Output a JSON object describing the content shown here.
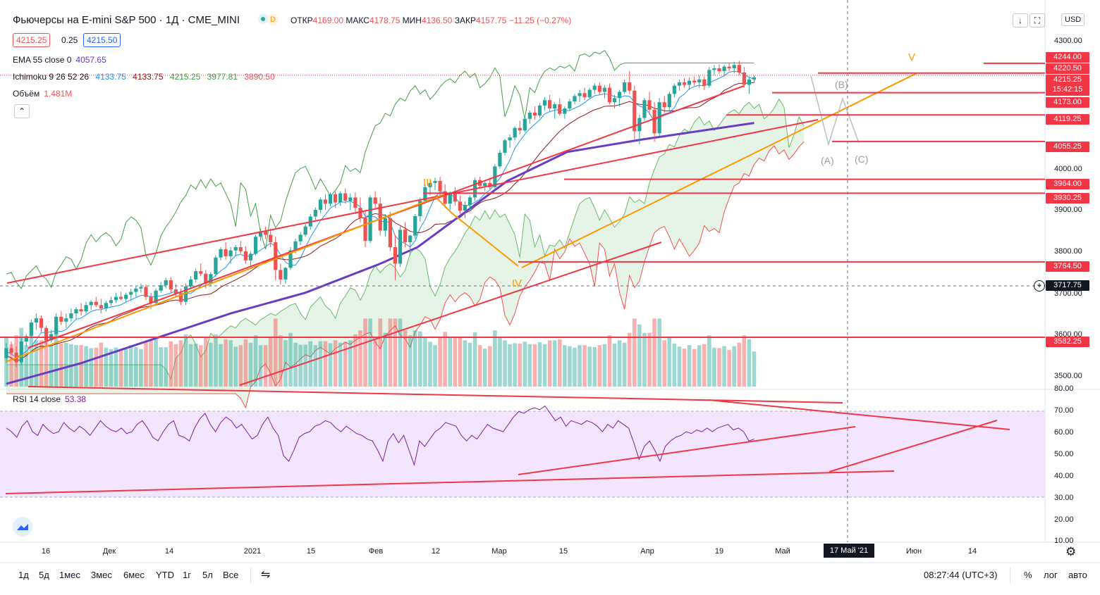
{
  "header": {
    "title": "Фьючерсы на E-mini S&P 500 · 1Д · CME_MINI",
    "badge": "D",
    "open_label": "ОТКР",
    "open": "4169.00",
    "high_label": "МАКС",
    "high": "4178.75",
    "low_label": "МИН",
    "low": "4136.50",
    "close_label": "ЗАКР",
    "close": "4157.75",
    "change": "−11.25 (−0.27%)",
    "bid": "4215.25",
    "spread": "0.25",
    "ask": "4215.50",
    "currency": "USD"
  },
  "indicators": {
    "ema_label": "EMA 55 close 0",
    "ema_value": "4057.65",
    "ichimoku_label": "Ichimoku 9 26 52 26",
    "ichimoku_values": [
      "4133.75",
      "4133.75",
      "4215.25",
      "3977.81",
      "3890.50"
    ],
    "volume_label": "Объём",
    "volume_value": "1.481M",
    "rsi_label": "RSI 14 close",
    "rsi_value": "53.38"
  },
  "waves": {
    "w3": "III",
    "w4": "IV",
    "w5": "V",
    "a": "(A)",
    "b": "(B)",
    "c": "(C)"
  },
  "price_levels": [
    {
      "label": "4244.00",
      "value": 4244
    },
    {
      "label": "4220.50",
      "value": 4220.5
    },
    {
      "label": "4173.00",
      "value": 4173
    },
    {
      "label": "4119.25",
      "value": 4119.25
    },
    {
      "label": "4055.25",
      "value": 4055.25
    },
    {
      "label": "3964.00",
      "value": 3964
    },
    {
      "label": "3930.25",
      "value": 3930.25
    },
    {
      "label": "3764.50",
      "value": 3764.5
    },
    {
      "label": "3582.25",
      "value": 3582.25
    }
  ],
  "current_price": {
    "label": "4215.25",
    "countdown": "15:42:15"
  },
  "crosshair": {
    "label": "3717.75",
    "date": "17 Май '21"
  },
  "axis": {
    "price_ticks": [
      "4300.00",
      "4000.00",
      "3900.00",
      "3800.00",
      "3700.00",
      "3600.00",
      "3500.00"
    ],
    "rsi_ticks": [
      "80.00",
      "70.00",
      "60.00",
      "50.00",
      "40.00",
      "30.00",
      "20.00",
      "10.00"
    ],
    "x_ticks": [
      "16",
      "Дек",
      "14",
      "2021",
      "15",
      "Фев",
      "12",
      "Мар",
      "15",
      "Апр",
      "19",
      "Май",
      "Июн",
      "14"
    ]
  },
  "bottom_bar": {
    "ranges": [
      "1д",
      "5д",
      "1мес",
      "3мес",
      "6мес",
      "YTD",
      "1г",
      "5л",
      "Все"
    ],
    "time": "08:27:44 (UTC+3)",
    "pct": "%",
    "log": "лог",
    "auto": "авто"
  },
  "colors": {
    "up": "#26a69a",
    "down": "#ef5350",
    "level": "#f23645",
    "ema": "#6a3cc4",
    "tenkan": "#2196f3",
    "kijun": "#8b1a1a",
    "chikou": "#43a047",
    "rsi": "#7b1fa2",
    "rsi_band": "#f3e5fd",
    "cloud": "#c8e6c9",
    "orange": "#ff9800"
  },
  "chart_data": {
    "type": "candlestick",
    "title": "Фьючерсы на E-mini S&P 500 · 1Д · CME_MINI",
    "ylim": [
      3460,
      4320
    ],
    "rsi_ylim": [
      0,
      83
    ],
    "candles_x_start": 9,
    "candle_spacing": 7.07,
    "ohlc": [
      [
        3532,
        3568,
        3520,
        3556
      ],
      [
        3556,
        3572,
        3540,
        3545
      ],
      [
        3545,
        3560,
        3510,
        3522
      ],
      [
        3522,
        3580,
        3515,
        3572
      ],
      [
        3572,
        3590,
        3560,
        3585
      ],
      [
        3585,
        3625,
        3580,
        3618
      ],
      [
        3618,
        3640,
        3600,
        3628
      ],
      [
        3628,
        3635,
        3595,
        3605
      ],
      [
        3605,
        3610,
        3560,
        3575
      ],
      [
        3575,
        3600,
        3570,
        3590
      ],
      [
        3590,
        3640,
        3585,
        3632
      ],
      [
        3632,
        3645,
        3612,
        3620
      ],
      [
        3620,
        3640,
        3605,
        3628
      ],
      [
        3628,
        3652,
        3620,
        3640
      ],
      [
        3640,
        3655,
        3625,
        3650
      ],
      [
        3650,
        3665,
        3635,
        3645
      ],
      [
        3645,
        3668,
        3640,
        3660
      ],
      [
        3660,
        3672,
        3648,
        3668
      ],
      [
        3668,
        3680,
        3655,
        3660
      ],
      [
        3660,
        3675,
        3640,
        3652
      ],
      [
        3652,
        3670,
        3645,
        3665
      ],
      [
        3665,
        3680,
        3658,
        3672
      ],
      [
        3672,
        3690,
        3665,
        3680
      ],
      [
        3680,
        3692,
        3672,
        3675
      ],
      [
        3675,
        3690,
        3668,
        3685
      ],
      [
        3685,
        3700,
        3670,
        3692
      ],
      [
        3692,
        3706,
        3680,
        3700
      ],
      [
        3700,
        3712,
        3690,
        3704
      ],
      [
        3704,
        3710,
        3672,
        3680
      ],
      [
        3680,
        3690,
        3650,
        3665
      ],
      [
        3665,
        3700,
        3658,
        3695
      ],
      [
        3695,
        3716,
        3690,
        3708
      ],
      [
        3708,
        3726,
        3700,
        3720
      ],
      [
        3720,
        3728,
        3690,
        3698
      ],
      [
        3698,
        3712,
        3680,
        3688
      ],
      [
        3688,
        3700,
        3660,
        3668
      ],
      [
        3668,
        3712,
        3660,
        3705
      ],
      [
        3705,
        3730,
        3698,
        3722
      ],
      [
        3722,
        3748,
        3715,
        3742
      ],
      [
        3742,
        3760,
        3730,
        3736
      ],
      [
        3736,
        3745,
        3700,
        3712
      ],
      [
        3712,
        3740,
        3705,
        3735
      ],
      [
        3735,
        3780,
        3728,
        3775
      ],
      [
        3775,
        3800,
        3768,
        3795
      ],
      [
        3795,
        3812,
        3770,
        3778
      ],
      [
        3778,
        3800,
        3760,
        3792
      ],
      [
        3792,
        3805,
        3778,
        3800
      ],
      [
        3800,
        3815,
        3785,
        3790
      ],
      [
        3790,
        3802,
        3760,
        3768
      ],
      [
        3768,
        3790,
        3755,
        3784
      ],
      [
        3784,
        3830,
        3780,
        3825
      ],
      [
        3825,
        3845,
        3815,
        3838
      ],
      [
        3838,
        3850,
        3820,
        3830
      ],
      [
        3830,
        3845,
        3800,
        3812
      ],
      [
        3812,
        3825,
        3720,
        3745
      ],
      [
        3745,
        3760,
        3710,
        3722
      ],
      [
        3722,
        3752,
        3712,
        3750
      ],
      [
        3750,
        3800,
        3745,
        3792
      ],
      [
        3792,
        3820,
        3785,
        3814
      ],
      [
        3814,
        3836,
        3805,
        3830
      ],
      [
        3830,
        3856,
        3825,
        3850
      ],
      [
        3850,
        3880,
        3842,
        3874
      ],
      [
        3874,
        3896,
        3866,
        3890
      ],
      [
        3890,
        3920,
        3882,
        3915
      ],
      [
        3915,
        3928,
        3890,
        3905
      ],
      [
        3905,
        3932,
        3898,
        3928
      ],
      [
        3928,
        3935,
        3895,
        3908
      ],
      [
        3908,
        3935,
        3900,
        3930
      ],
      [
        3930,
        3942,
        3905,
        3912
      ],
      [
        3912,
        3930,
        3890,
        3920
      ],
      [
        3920,
        3932,
        3880,
        3895
      ],
      [
        3895,
        3920,
        3860,
        3870
      ],
      [
        3870,
        3890,
        3800,
        3815
      ],
      [
        3815,
        3925,
        3810,
        3920
      ],
      [
        3920,
        3935,
        3895,
        3905
      ],
      [
        3905,
        3920,
        3828,
        3840
      ],
      [
        3840,
        3880,
        3825,
        3870
      ],
      [
        3870,
        3885,
        3790,
        3800
      ],
      [
        3800,
        3830,
        3720,
        3760
      ],
      [
        3760,
        3850,
        3752,
        3842
      ],
      [
        3842,
        3860,
        3800,
        3812
      ],
      [
        3812,
        3830,
        3780,
        3828
      ],
      [
        3828,
        3880,
        3820,
        3875
      ],
      [
        3875,
        3920,
        3862,
        3912
      ],
      [
        3912,
        3952,
        3905,
        3945
      ],
      [
        3945,
        3962,
        3925,
        3955
      ],
      [
        3955,
        3968,
        3938,
        3960
      ],
      [
        3960,
        3970,
        3925,
        3935
      ],
      [
        3935,
        3952,
        3895,
        3905
      ],
      [
        3905,
        3935,
        3890,
        3930
      ],
      [
        3930,
        3945,
        3900,
        3910
      ],
      [
        3910,
        3925,
        3880,
        3888
      ],
      [
        3888,
        3910,
        3870,
        3902
      ],
      [
        3902,
        3925,
        3890,
        3920
      ],
      [
        3920,
        3968,
        3912,
        3962
      ],
      [
        3962,
        3970,
        3940,
        3948
      ],
      [
        3948,
        3958,
        3935,
        3955
      ],
      [
        3955,
        3968,
        3940,
        3945
      ],
      [
        3945,
        4000,
        3940,
        3995
      ],
      [
        3995,
        4035,
        3990,
        4028
      ],
      [
        4028,
        4062,
        4022,
        4058
      ],
      [
        4058,
        4072,
        4040,
        4065
      ],
      [
        4065,
        4092,
        4058,
        4088
      ],
      [
        4088,
        4105,
        4072,
        4082
      ],
      [
        4082,
        4115,
        4078,
        4110
      ],
      [
        4110,
        4130,
        4098,
        4125
      ],
      [
        4125,
        4140,
        4108,
        4118
      ],
      [
        4118,
        4148,
        4112,
        4142
      ],
      [
        4142,
        4162,
        4130,
        4155
      ],
      [
        4155,
        4168,
        4128,
        4135
      ],
      [
        4135,
        4150,
        4110,
        4145
      ],
      [
        4145,
        4160,
        4118,
        4122
      ],
      [
        4122,
        4140,
        4110,
        4135
      ],
      [
        4135,
        4158,
        4130,
        4152
      ],
      [
        4152,
        4170,
        4145,
        4165
      ],
      [
        4165,
        4180,
        4150,
        4172
      ],
      [
        4172,
        4185,
        4155,
        4162
      ],
      [
        4162,
        4185,
        4158,
        4180
      ],
      [
        4180,
        4196,
        4170,
        4190
      ],
      [
        4190,
        4198,
        4168,
        4175
      ],
      [
        4175,
        4192,
        4160,
        4185
      ],
      [
        4185,
        4195,
        4145,
        4150
      ],
      [
        4150,
        4168,
        4135,
        4160
      ],
      [
        4160,
        4180,
        4140,
        4175
      ],
      [
        4175,
        4205,
        4170,
        4198
      ],
      [
        4198,
        4225,
        4170,
        4178
      ],
      [
        4178,
        4190,
        4060,
        4080
      ],
      [
        4080,
        4120,
        4048,
        4112
      ],
      [
        4112,
        4160,
        4105,
        4155
      ],
      [
        4155,
        4175,
        4120,
        4132
      ],
      [
        4132,
        4150,
        4055,
        4075
      ],
      [
        4075,
        4160,
        4068,
        4150
      ],
      [
        4150,
        4165,
        4125,
        4138
      ],
      [
        4138,
        4175,
        4130,
        4170
      ],
      [
        4170,
        4195,
        4162,
        4190
      ],
      [
        4190,
        4205,
        4178,
        4198
      ],
      [
        4198,
        4208,
        4185,
        4192
      ],
      [
        4192,
        4210,
        4180,
        4202
      ],
      [
        4202,
        4212,
        4190,
        4198
      ],
      [
        4198,
        4215,
        4185,
        4205
      ],
      [
        4205,
        4212,
        4180,
        4190
      ],
      [
        4190,
        4235,
        4185,
        4228
      ],
      [
        4228,
        4240,
        4215,
        4232
      ],
      [
        4232,
        4242,
        4218,
        4225
      ],
      [
        4225,
        4240,
        4212,
        4236
      ],
      [
        4236,
        4245,
        4225,
        4232
      ],
      [
        4232,
        4248,
        4220,
        4240
      ],
      [
        4240,
        4250,
        4215,
        4222
      ],
      [
        4222,
        4235,
        4185,
        4192
      ],
      [
        4192,
        4212,
        4170,
        4205
      ],
      [
        4205,
        4215,
        4198,
        4210
      ]
    ],
    "ema55": [
      [
        0,
        3470
      ],
      [
        20,
        3520
      ],
      [
        40,
        3580
      ],
      [
        60,
        3640
      ],
      [
        80,
        3690
      ],
      [
        100,
        3760
      ],
      [
        110,
        3800
      ],
      [
        122,
        3880
      ],
      [
        134,
        3960
      ],
      [
        150,
        4030
      ],
      [
        170,
        4060
      ],
      [
        200,
        4100
      ]
    ],
    "tenkan_approx": "follows close with short lag",
    "volume_ylim": [
      0,
      2.5
    ],
    "rsi": [
      62,
      60,
      57,
      63,
      66,
      60,
      58,
      64,
      61,
      59,
      60,
      65,
      62,
      60,
      63,
      61,
      58,
      62,
      66,
      63,
      61,
      60,
      62,
      59,
      60,
      64,
      66,
      62,
      57,
      55,
      60,
      64,
      66,
      58,
      57,
      55,
      62,
      67,
      70,
      64,
      60,
      65,
      68,
      66,
      62,
      64,
      60,
      56,
      58,
      64,
      68,
      62,
      58,
      47,
      44,
      50,
      57,
      59,
      60,
      63,
      64,
      66,
      65,
      62,
      60,
      63,
      61,
      59,
      58,
      56,
      55,
      50,
      44,
      55,
      59,
      54,
      58,
      50,
      42,
      55,
      52,
      56,
      60,
      62,
      65,
      64,
      63,
      58,
      55,
      58,
      56,
      60,
      64,
      62,
      61,
      60,
      64,
      68,
      71,
      70,
      72,
      73,
      72,
      74,
      70,
      66,
      68,
      63,
      66,
      65,
      64,
      66,
      65,
      63,
      60,
      64,
      62,
      66,
      64,
      62,
      54,
      45,
      52,
      55,
      50,
      44,
      52,
      55,
      57,
      58,
      60,
      59,
      61,
      60,
      62,
      60,
      62,
      63,
      64,
      61,
      62,
      60,
      55,
      56
    ]
  }
}
